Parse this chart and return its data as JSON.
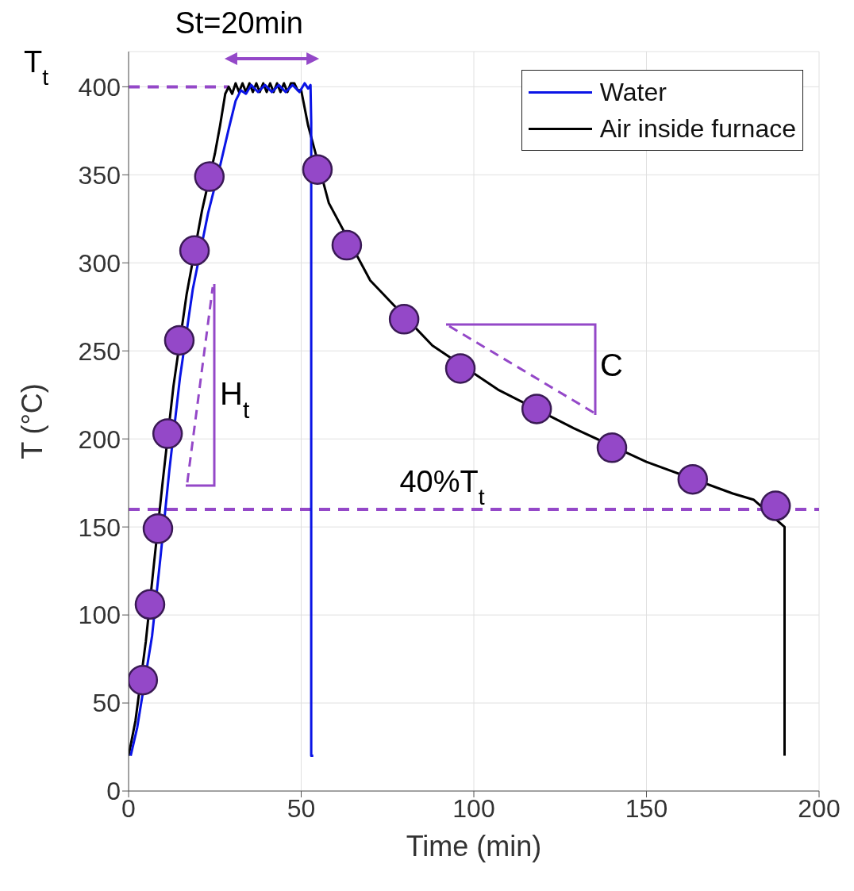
{
  "chart_data": {
    "type": "line",
    "xlabel": "Time (min)",
    "ylabel": "T (°C)",
    "xlim": [
      0,
      200
    ],
    "xticks": [
      0,
      50,
      100,
      150,
      200
    ],
    "ylim": [
      0,
      420
    ],
    "yticks": [
      0,
      50,
      100,
      150,
      200,
      250,
      300,
      350,
      400
    ],
    "grid": true,
    "legend": "top right",
    "line_style": "solid",
    "series": [
      {
        "name": "Water",
        "color": "#0a14e6",
        "marker": "none",
        "x": [
          0.6,
          2.5,
          6.8,
          9.2,
          11.8,
          14.9,
          18.6,
          23,
          26.5,
          29,
          31,
          32.5,
          34,
          35.5,
          37.5,
          39.5,
          41.5,
          43.5,
          45.5,
          47.5,
          49.5,
          51,
          52,
          52.7,
          52.9,
          52.9,
          53.5
        ],
        "values": [
          20,
          36,
          88,
          132,
          182,
          235,
          285,
          328,
          355,
          376,
          392,
          398,
          396,
          401,
          397,
          401,
          397,
          401,
          397,
          401,
          397,
          402,
          399,
          401,
          380,
          20,
          20
        ]
      },
      {
        "name": "Air inside furnace",
        "color": "#000000",
        "marker": "none",
        "x": [
          0,
          2,
          5,
          7.3,
          9.9,
          13,
          16.8,
          21.3,
          25,
          26.5,
          28,
          29,
          30,
          31,
          32,
          33,
          34,
          35,
          36,
          37,
          38,
          39,
          40,
          41,
          42,
          43,
          44,
          45,
          46,
          47,
          48,
          49,
          50,
          52,
          58,
          70,
          88,
          107,
          129,
          150,
          175,
          181,
          190,
          190
        ],
        "values": [
          20,
          40,
          85,
          128,
          176,
          230,
          282,
          330,
          362,
          378,
          396,
          400,
          396,
          402,
          397,
          402,
          397,
          402,
          397,
          402,
          397,
          402,
          397,
          402,
          397,
          402,
          397,
          402,
          397,
          402,
          402,
          398,
          398,
          378,
          334,
          290,
          253,
          228,
          206,
          187,
          169,
          165.5,
          150,
          20
        ]
      },
      {
        "type": "scatter",
        "color": "#9448c8",
        "marker": "circle",
        "x": [
          4.1,
          6.2,
          8.5,
          11.3,
          14.7,
          19.1,
          23.4,
          54.7,
          63.2,
          79.8,
          96.1,
          118.2,
          140,
          163.4,
          187.4
        ],
        "values": [
          63,
          106,
          149,
          203,
          256,
          307,
          349,
          353,
          310,
          268,
          240,
          217,
          195,
          177,
          162
        ]
      }
    ],
    "ref_lines": [
      {
        "axis": "y",
        "value": 400,
        "label": "T$_{t}$",
        "color": "#9448c8",
        "line_style": "dashed"
      },
      {
        "axis": "y",
        "value": 160,
        "label": "40%T$_{t}$",
        "color": "#9448c8",
        "line_style": "dashed"
      }
    ],
    "annotations": [
      "St=20min",
      "H$_{t}$",
      "C"
    ]
  }
}
